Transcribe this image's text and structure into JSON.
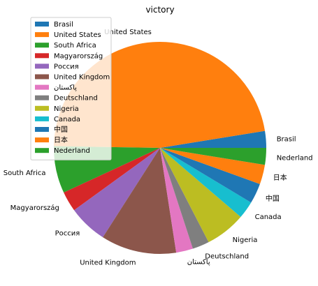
{
  "chart_data": {
    "type": "pie",
    "title": "victory",
    "labels": [
      "Brasil",
      "United States",
      "South Africa",
      "Magyarország",
      "Россия",
      "United Kingdom",
      "پاکستان",
      "Deutschland",
      "Nigeria",
      "Canada",
      "中国",
      "日本",
      "Nederland"
    ],
    "values": [
      2.5,
      46.0,
      7.0,
      3.0,
      5.8,
      11.2,
      2.5,
      2.5,
      6.0,
      2.6,
      3.0,
      2.9,
      2.5
    ],
    "colors": [
      "#1f77b4",
      "#ff7f0e",
      "#2ca02c",
      "#d62728",
      "#9467bd",
      "#8c564b",
      "#e377c2",
      "#7f7f7f",
      "#bcbd22",
      "#17becf",
      "#1f77b4",
      "#ff7f0e",
      "#2ca02c"
    ],
    "legend": {
      "placement": "upper-left"
    }
  }
}
